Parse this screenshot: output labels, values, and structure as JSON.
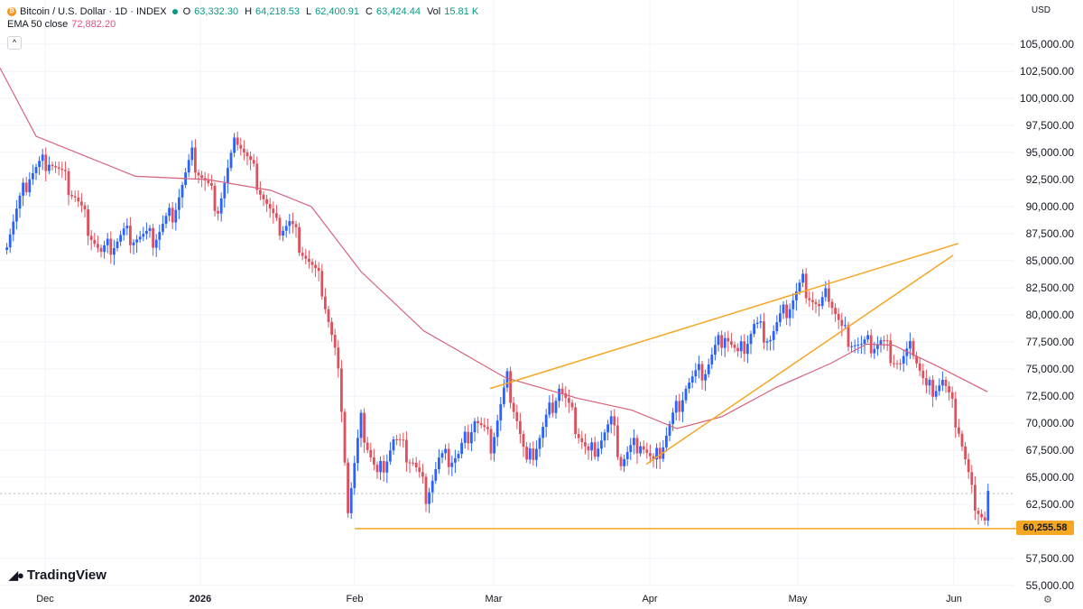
{
  "legend": {
    "symbol": "Bitcoin / U.S. Dollar · 1D · INDEX",
    "o_label": "O",
    "o_value": "63,332.30",
    "h_label": "H",
    "h_value": "64,218.53",
    "l_label": "L",
    "l_value": "62,400.91",
    "c_label": "C",
    "c_value": "63,424.44",
    "vol_label": "Vol",
    "vol_value": "15.81 K",
    "ema_label": "EMA 50 close",
    "ema_value": "72,882.20",
    "collapse_icon": "chevron-up-icon"
  },
  "currency": "USD",
  "brand": "TradingView",
  "last_price_label": "60,255.58",
  "colors": {
    "up": "#2962ff",
    "down": "#e0505c",
    "ema": "#d8607a",
    "trendline": "#f5a623",
    "grid": "#f0f3fa"
  },
  "chart_data": {
    "type": "candlestick",
    "title": "Bitcoin / U.S. Dollar · 1D · INDEX",
    "ylim": [
      53500,
      107500
    ],
    "y_ticks": [
      "105,000.00",
      "102,500.00",
      "100,000.00",
      "97,500.00",
      "95,000.00",
      "92,500.00",
      "90,000.00",
      "87,500.00",
      "85,000.00",
      "82,500.00",
      "80,000.00",
      "77,500.00",
      "75,000.00",
      "72,500.00",
      "70,000.00",
      "67,500.00",
      "65,000.00",
      "62,500.00",
      "57,500.00",
      "55,000.00"
    ],
    "x_ticks": [
      "Dec",
      "2026",
      "Feb",
      "Mar",
      "Apr",
      "May",
      "Jun"
    ],
    "series": [
      {
        "name": "EMA 50 close",
        "type": "line",
        "points": [
          [
            "Dec",
            102800
          ],
          [
            "2026",
            93000
          ],
          [
            "2026 +17d",
            93000
          ],
          [
            "Feb",
            84800
          ],
          [
            "Mar",
            74800
          ],
          [
            "Apr",
            70600
          ],
          [
            "May",
            74800
          ],
          [
            "May +21d",
            77300
          ],
          [
            "Jun +6d",
            72900
          ]
        ]
      }
    ],
    "annotations": {
      "horizontal_support": 60255.58,
      "rising_wedge_upper": [
        [
          "late Feb",
          73200
        ],
        [
          "Jun +1d",
          86600
        ]
      ],
      "rising_wedge_lower": [
        [
          "Mar +21d",
          66200
        ],
        [
          "Jun",
          85500
        ]
      ]
    },
    "last_values": {
      "open": 63332.3,
      "high": 64218.53,
      "low": 62400.91,
      "close": 63424.44,
      "volume": "15.81 K",
      "ema50": 72882.2
    }
  }
}
